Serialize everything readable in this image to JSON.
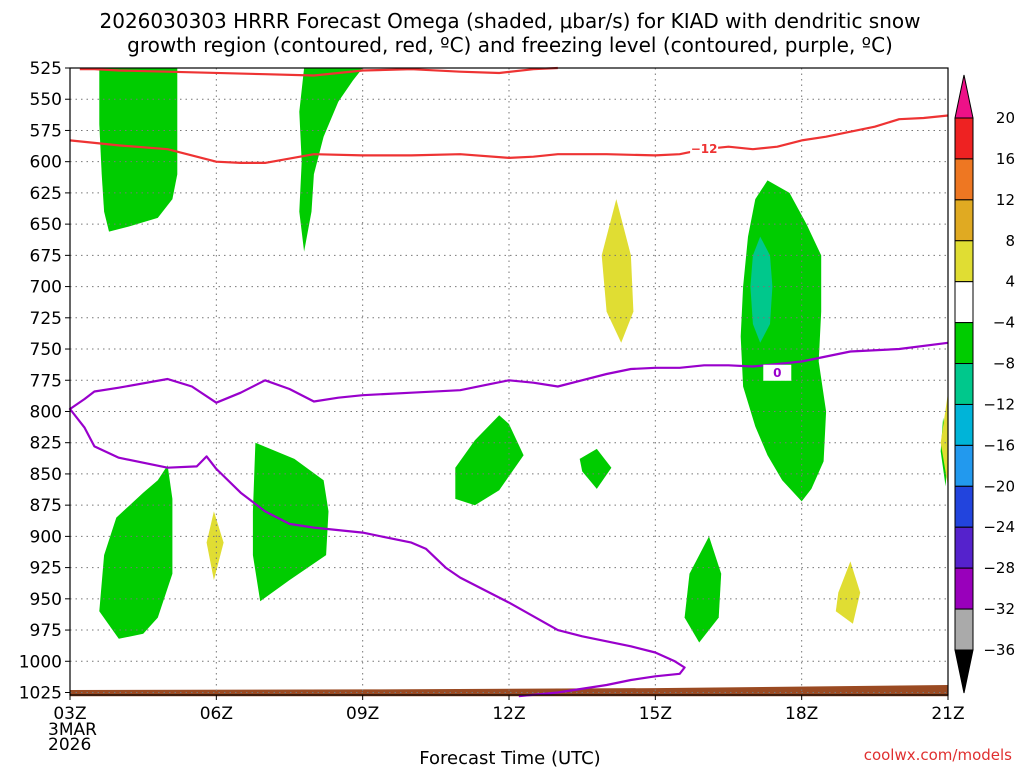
{
  "chart_data": {
    "type": "contour",
    "title_line1": "2026030303 HRRR Forecast Omega (shaded, μbar/s) for KIAD with dendritic snow",
    "title_line2": "growth region (contoured, red, ºC) and freezing level (contoured, purple, ºC)",
    "xlabel": "Forecast Time (UTC)",
    "credit": "coolwx.com/models",
    "x_ticks": [
      {
        "hour": 0,
        "label": "03Z"
      },
      {
        "hour": 3,
        "label": "06Z"
      },
      {
        "hour": 6,
        "label": "09Z"
      },
      {
        "hour": 9,
        "label": "12Z"
      },
      {
        "hour": 12,
        "label": "15Z"
      },
      {
        "hour": 15,
        "label": "18Z"
      },
      {
        "hour": 18,
        "label": "21Z"
      }
    ],
    "x_date_label": [
      "3MAR",
      "2026"
    ],
    "y_ticks": [
      525,
      550,
      575,
      600,
      625,
      650,
      675,
      700,
      725,
      750,
      775,
      800,
      825,
      850,
      875,
      900,
      925,
      950,
      975,
      1000,
      1025
    ],
    "xlim": [
      0,
      18
    ],
    "ylim_hpa": [
      525,
      1027
    ],
    "colorbar": {
      "labels": [
        "20",
        "16",
        "12",
        "8",
        "4",
        "−4",
        "−8",
        "−12",
        "−16",
        "−20",
        "−24",
        "−28",
        "−32",
        "−36"
      ],
      "colors": [
        "#ee2222",
        "#ee7722",
        "#e0aa22",
        "#e0dd33",
        "#ffffff",
        "#00cc00",
        "#00c88c",
        "#00b4d8",
        "#2299ee",
        "#2244dd",
        "#5522cc",
        "#9900bb",
        "#aaaaaa"
      ],
      "top_arrow_color": "#ee1188",
      "bottom_arrow_color": "#000000"
    },
    "shading": {
      "green": "#00cc00",
      "teal": "#00c88c",
      "yellow": "#e0dd33",
      "ground": "#9a4a22"
    },
    "contours": [
      {
        "name": "dgz-upper",
        "color": "#ee3333",
        "label": "",
        "points": [
          [
            0.2,
            526
          ],
          [
            0.5,
            526
          ],
          [
            1,
            527
          ],
          [
            2,
            528
          ],
          [
            4,
            530
          ],
          [
            5,
            531
          ],
          [
            6,
            527
          ],
          [
            7,
            526
          ],
          [
            8,
            528
          ],
          [
            8.8,
            529
          ],
          [
            9.5,
            526
          ],
          [
            10,
            525
          ]
        ]
      },
      {
        "name": "dgz-lower",
        "color": "#ee3333",
        "label": "−12",
        "label_at": [
          13,
          590
        ],
        "points": [
          [
            0,
            583
          ],
          [
            1,
            587
          ],
          [
            2,
            590
          ],
          [
            3,
            600
          ],
          [
            3.5,
            601
          ],
          [
            4,
            601
          ],
          [
            5,
            594
          ],
          [
            6,
            595
          ],
          [
            7,
            595
          ],
          [
            8,
            594
          ],
          [
            9,
            597
          ],
          [
            9.5,
            596
          ],
          [
            10,
            594
          ],
          [
            11,
            594
          ],
          [
            12,
            595
          ],
          [
            12.5,
            594
          ],
          [
            13,
            590
          ],
          [
            13.5,
            588
          ],
          [
            14,
            590
          ],
          [
            14.5,
            588
          ],
          [
            15,
            583
          ],
          [
            15.5,
            580
          ],
          [
            16,
            576
          ],
          [
            16.5,
            572
          ],
          [
            17,
            566
          ],
          [
            17.5,
            565
          ],
          [
            18,
            563
          ]
        ]
      },
      {
        "name": "freezing-level",
        "color": "#9900cc",
        "label": "0",
        "label_at": [
          14.5,
          769
        ],
        "points": [
          [
            9.2,
            1028
          ],
          [
            10,
            1025
          ],
          [
            11,
            1019
          ],
          [
            11.5,
            1015
          ],
          [
            12,
            1012
          ],
          [
            12.5,
            1010
          ],
          [
            12.6,
            1005
          ],
          [
            12.4,
            1000
          ],
          [
            12,
            993
          ],
          [
            11.5,
            988
          ],
          [
            10.5,
            980
          ],
          [
            10,
            975
          ],
          [
            9,
            953
          ],
          [
            8,
            933
          ],
          [
            7.7,
            925
          ],
          [
            7.3,
            910
          ],
          [
            7,
            905
          ],
          [
            6,
            897
          ],
          [
            5,
            893
          ],
          [
            4.5,
            890
          ],
          [
            4,
            880
          ],
          [
            3.5,
            865
          ],
          [
            3,
            846
          ],
          [
            2.8,
            836
          ],
          [
            2.6,
            844
          ],
          [
            2,
            845
          ],
          [
            1,
            837
          ],
          [
            0.5,
            828
          ],
          [
            0.3,
            813
          ],
          [
            0,
            798
          ],
          [
            0.3,
            790
          ],
          [
            0.5,
            784
          ],
          [
            1,
            781
          ],
          [
            2,
            774
          ],
          [
            2.5,
            780
          ],
          [
            3,
            793
          ],
          [
            3.5,
            785
          ],
          [
            4,
            775
          ],
          [
            4.5,
            782
          ],
          [
            5,
            792
          ],
          [
            5.5,
            789
          ],
          [
            6,
            787
          ],
          [
            7,
            785
          ],
          [
            8,
            783
          ],
          [
            8.5,
            779
          ],
          [
            9,
            775
          ],
          [
            9.5,
            777
          ],
          [
            10,
            780
          ],
          [
            11,
            770
          ],
          [
            11.5,
            766
          ],
          [
            12,
            765
          ],
          [
            12.5,
            765
          ],
          [
            13,
            763
          ],
          [
            13.5,
            763
          ],
          [
            14,
            764
          ],
          [
            15,
            760
          ],
          [
            16,
            752
          ],
          [
            17,
            750
          ],
          [
            18,
            745
          ]
        ]
      }
    ]
  }
}
